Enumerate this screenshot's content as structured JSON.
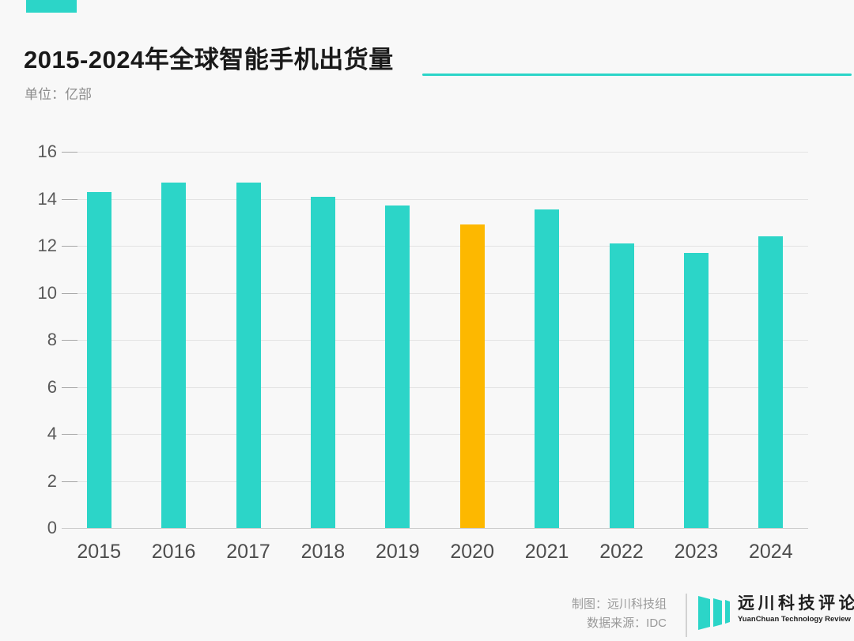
{
  "page": {
    "background": "#f8f8f8",
    "accent_color": "#2CD5C8"
  },
  "header": {
    "title": "2015-2024年全球智能手机出货量",
    "unit_label": "单位：亿部"
  },
  "chart_data": {
    "type": "bar",
    "title": "2015-2024年全球智能手机出货量",
    "unit": "亿部",
    "categories": [
      "2015",
      "2016",
      "2017",
      "2018",
      "2019",
      "2020",
      "2021",
      "2022",
      "2023",
      "2024"
    ],
    "values": [
      14.3,
      14.7,
      14.7,
      14.1,
      13.7,
      12.9,
      13.55,
      12.1,
      11.7,
      12.4
    ],
    "highlight_index": 5,
    "bar_color": "#2CD5C8",
    "highlight_color": "#FDB800",
    "ylim": [
      0,
      16
    ],
    "yticks": [
      0,
      2,
      4,
      6,
      8,
      10,
      12,
      14,
      16
    ],
    "grid": true,
    "legend": "none"
  },
  "footer": {
    "credit": "制图：远川科技组",
    "source": "数据来源：IDC",
    "logo": {
      "zh": "远川科技评论",
      "en": "YuanChuan Technology Review",
      "icon": "logo-bars-icon",
      "color": "#2CD5C8"
    }
  }
}
